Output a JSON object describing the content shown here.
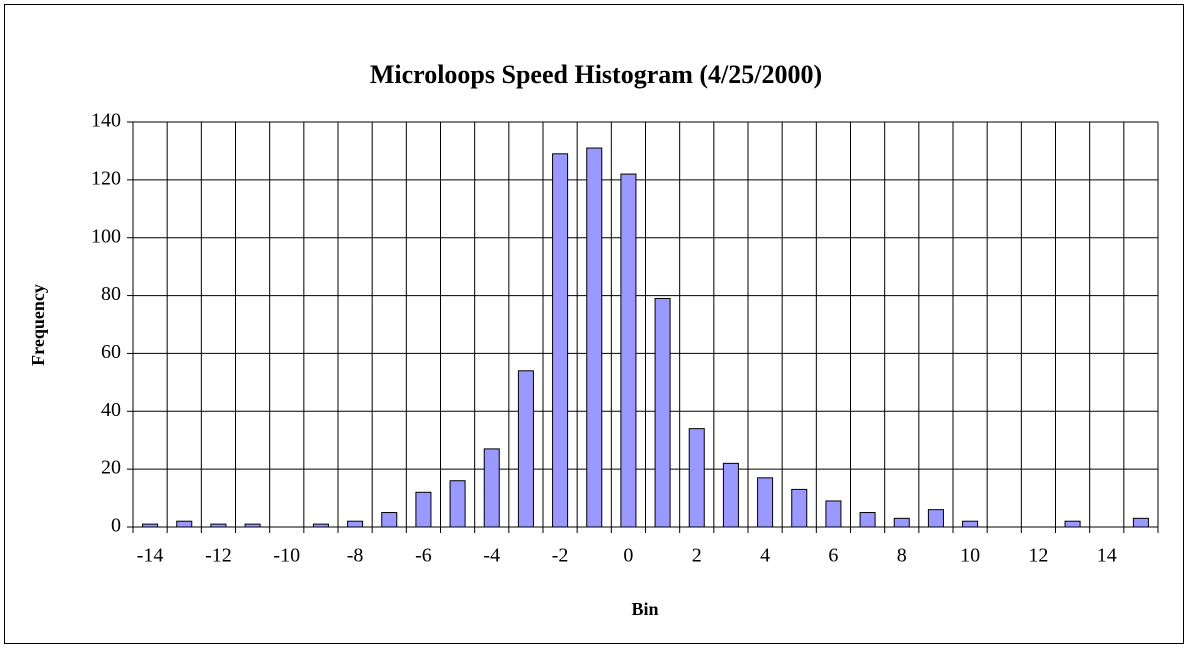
{
  "chart_data": {
    "type": "bar",
    "title": "Microloops Speed Histogram (4/25/2000)",
    "x_label": "Bin",
    "y_label": "Frequency",
    "categories": [
      -14,
      null,
      -12,
      null,
      -10,
      null,
      -8,
      null,
      -6,
      null,
      -4,
      null,
      -2,
      null,
      0,
      null,
      2,
      null,
      4,
      null,
      6,
      null,
      8,
      null,
      10,
      null,
      12,
      null,
      14,
      null
    ],
    "values": [
      1,
      2,
      1,
      1,
      0,
      1,
      2,
      5,
      12,
      16,
      27,
      54,
      129,
      131,
      122,
      79,
      34,
      22,
      17,
      13,
      9,
      5,
      3,
      6,
      2,
      0,
      0,
      2,
      0,
      3
    ],
    "color": "#9999ff",
    "ylim": [
      0,
      140
    ],
    "yticks": [
      0,
      20,
      40,
      60,
      80,
      100,
      120,
      140
    ],
    "grid": true
  }
}
